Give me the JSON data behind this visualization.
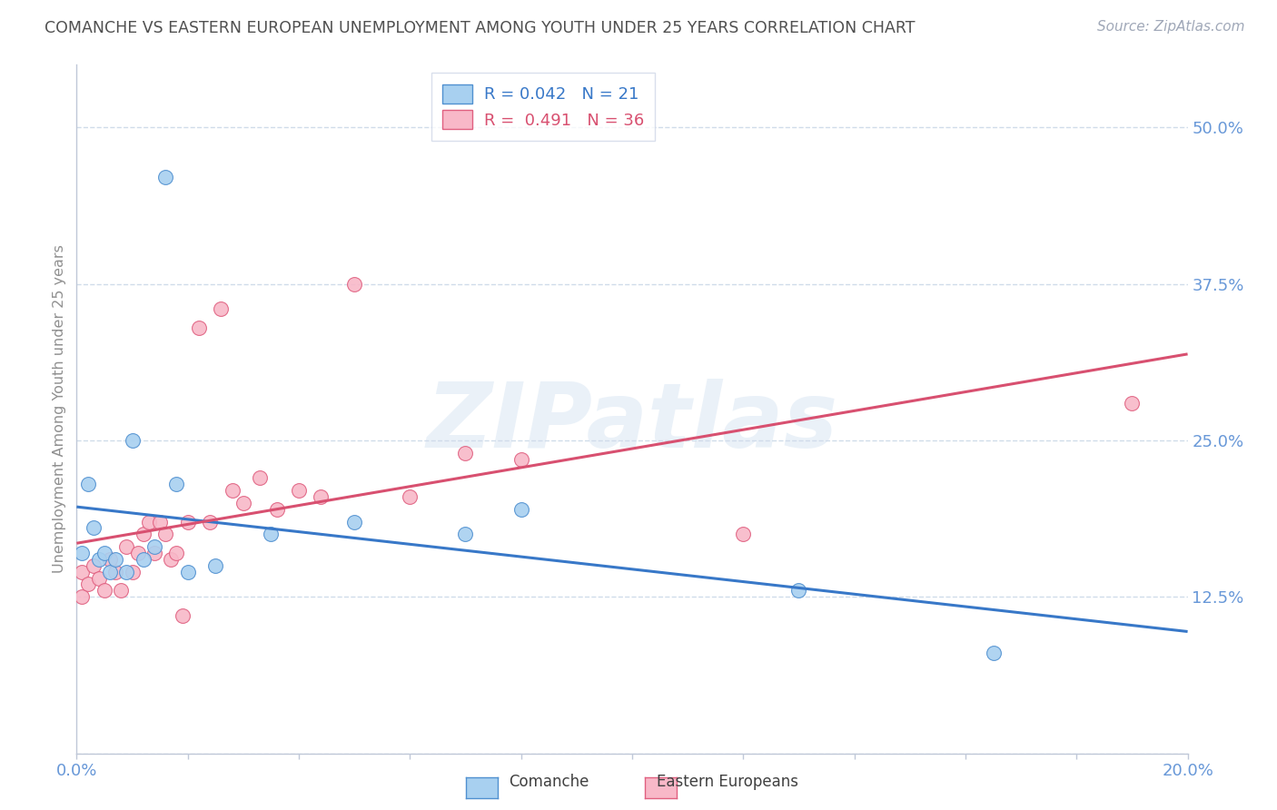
{
  "title": "COMANCHE VS EASTERN EUROPEAN UNEMPLOYMENT AMONG YOUTH UNDER 25 YEARS CORRELATION CHART",
  "source_text": "Source: ZipAtlas.com",
  "ylabel": "Unemployment Among Youth under 25 years",
  "xlim": [
    0.0,
    0.2
  ],
  "ylim": [
    0.0,
    0.55
  ],
  "xticks": [
    0.0,
    0.02,
    0.04,
    0.06,
    0.08,
    0.1,
    0.12,
    0.14,
    0.16,
    0.18,
    0.2
  ],
  "yticks": [
    0.0,
    0.125,
    0.25,
    0.375,
    0.5
  ],
  "ytick_labels": [
    "",
    "12.5%",
    "25.0%",
    "37.5%",
    "50.0%"
  ],
  "comanche_x": [
    0.001,
    0.002,
    0.003,
    0.004,
    0.005,
    0.006,
    0.007,
    0.009,
    0.01,
    0.012,
    0.014,
    0.016,
    0.018,
    0.02,
    0.025,
    0.035,
    0.05,
    0.07,
    0.08,
    0.13,
    0.165
  ],
  "comanche_y": [
    0.16,
    0.215,
    0.18,
    0.155,
    0.16,
    0.145,
    0.155,
    0.145,
    0.25,
    0.155,
    0.165,
    0.46,
    0.215,
    0.145,
    0.15,
    0.175,
    0.185,
    0.175,
    0.195,
    0.13,
    0.08
  ],
  "eastern_x": [
    0.001,
    0.001,
    0.002,
    0.003,
    0.004,
    0.005,
    0.006,
    0.007,
    0.008,
    0.009,
    0.01,
    0.011,
    0.012,
    0.013,
    0.014,
    0.015,
    0.016,
    0.017,
    0.018,
    0.019,
    0.02,
    0.022,
    0.024,
    0.026,
    0.028,
    0.03,
    0.033,
    0.036,
    0.04,
    0.044,
    0.05,
    0.06,
    0.07,
    0.08,
    0.12,
    0.19
  ],
  "eastern_y": [
    0.145,
    0.125,
    0.135,
    0.15,
    0.14,
    0.13,
    0.155,
    0.145,
    0.13,
    0.165,
    0.145,
    0.16,
    0.175,
    0.185,
    0.16,
    0.185,
    0.175,
    0.155,
    0.16,
    0.11,
    0.185,
    0.34,
    0.185,
    0.355,
    0.21,
    0.2,
    0.22,
    0.195,
    0.21,
    0.205,
    0.375,
    0.205,
    0.24,
    0.235,
    0.175,
    0.28
  ],
  "comanche_color": "#a8d0f0",
  "eastern_color": "#f8b8c8",
  "comanche_edge_color": "#5090d0",
  "eastern_edge_color": "#e06080",
  "comanche_line_color": "#3878c8",
  "eastern_line_color": "#d85070",
  "R_comanche": 0.042,
  "N_comanche": 21,
  "R_eastern": 0.491,
  "N_eastern": 36,
  "watermark": "ZIPatlas",
  "title_color": "#505050",
  "axis_label_color": "#6898d8",
  "grid_color": "#d0dcea",
  "background_color": "#ffffff",
  "legend_bg": "#ffffff",
  "legend_edge": "#d0d8e8"
}
